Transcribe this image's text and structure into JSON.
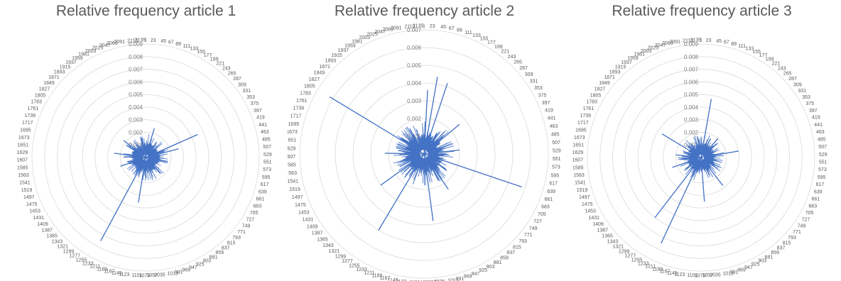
{
  "chart_data": [
    {
      "type": "radar",
      "title": "Relative frequency article 1",
      "rlim": [
        0,
        0.009
      ],
      "ring_ticks": [
        0,
        0.001,
        0.002,
        0.003,
        0.004,
        0.005,
        0.006,
        0.007,
        0.008,
        0.009
      ],
      "ring_labels": [
        "0",
        "0.001",
        "0.002",
        "0.003",
        "0.004",
        "0.005",
        "0.006",
        "0.007",
        "0.008",
        "0.009"
      ],
      "category_count": 2150,
      "category_labels_shown": [
        "1",
        "23",
        "45",
        "67",
        "89",
        "111",
        "133",
        "155",
        "177",
        "199",
        "221",
        "243",
        "265",
        "287",
        "309",
        "331",
        "353",
        "375",
        "397",
        "419",
        "441",
        "463",
        "485",
        "507",
        "529",
        "551",
        "573",
        "595",
        "617",
        "639",
        "661",
        "683",
        "705",
        "727",
        "749",
        "771",
        "793",
        "815",
        "837",
        "859",
        "881",
        "903",
        "925",
        "947",
        "969",
        "991",
        "1013",
        "1035",
        "1057",
        "1079",
        "1101",
        "1123",
        "1145",
        "1167",
        "1189",
        "1211",
        "1233",
        "1255",
        "1277",
        "1299",
        "1321",
        "1343",
        "1365",
        "1387",
        "1409",
        "1431",
        "1453",
        "1475",
        "1497",
        "1519",
        "1541",
        "1563",
        "1585",
        "1607",
        "1629",
        "1651",
        "1673",
        "1695",
        "1717",
        "1739",
        "1761",
        "1783",
        "1805",
        "1827",
        "1849",
        "1871",
        "1893",
        "1915",
        "1937",
        "1959",
        "1981",
        "2003",
        "2025",
        "2047",
        "2069",
        "2091",
        "2113",
        "2135"
      ],
      "series_color": "#4472c4",
      "peaks": [
        {
          "category": 396,
          "value": 0.0045
        },
        {
          "category": 450,
          "value": 0.0027
        },
        {
          "category": 1245,
          "value": 0.0075
        },
        {
          "category": 1130,
          "value": 0.0036
        },
        {
          "category": 100,
          "value": 0.0024
        },
        {
          "category": 1840,
          "value": 0.0022
        },
        {
          "category": 1500,
          "value": 0.0021
        },
        {
          "category": 1660,
          "value": 0.0025
        },
        {
          "category": 600,
          "value": 0.0018
        },
        {
          "category": 820,
          "value": 0.0017
        },
        {
          "category": 2080,
          "value": 0.0016
        }
      ]
    },
    {
      "type": "radar",
      "title": "Relative frequency article 2",
      "rlim": [
        0,
        0.007
      ],
      "ring_ticks": [
        0,
        0.001,
        0.002,
        0.003,
        0.004,
        0.005,
        0.006,
        0.007
      ],
      "ring_labels": [
        "0",
        "0.001",
        "0.002",
        "0.003",
        "0.004",
        "0.005",
        "0.006",
        "0.007"
      ],
      "category_count": 2150,
      "category_labels_shown": [
        "1",
        "23",
        "45",
        "67",
        "89",
        "111",
        "133",
        "155",
        "177",
        "199",
        "221",
        "243",
        "265",
        "287",
        "309",
        "331",
        "353",
        "375",
        "397",
        "419",
        "441",
        "463",
        "485",
        "507",
        "529",
        "551",
        "573",
        "595",
        "617",
        "639",
        "661",
        "683",
        "705",
        "727",
        "749",
        "771",
        "793",
        "815",
        "837",
        "859",
        "881",
        "903",
        "925",
        "947",
        "969",
        "991",
        "1013",
        "1035",
        "1057",
        "1079",
        "1101",
        "1123",
        "1145",
        "1167",
        "1189",
        "1211",
        "1233",
        "1255",
        "1277",
        "1299",
        "1321",
        "1343",
        "1365",
        "1387",
        "1409",
        "1431",
        "1453",
        "1475",
        "1497",
        "1519",
        "1541",
        "1563",
        "1585",
        "1607",
        "1629",
        "1651",
        "1673",
        "1695",
        "1717",
        "1739",
        "1761",
        "1783",
        "1805",
        "1827",
        "1849",
        "1871",
        "1893",
        "1915",
        "1937",
        "1959",
        "1981",
        "2003",
        "2025",
        "2047",
        "2069",
        "2091",
        "2113",
        "2135"
      ],
      "series_color": "#4472c4",
      "peaks": [
        {
          "category": 1800,
          "value": 0.0062
        },
        {
          "category": 650,
          "value": 0.0058
        },
        {
          "category": 1260,
          "value": 0.005
        },
        {
          "category": 60,
          "value": 0.0044
        },
        {
          "category": 110,
          "value": 0.0042
        },
        {
          "category": 1030,
          "value": 0.0038
        },
        {
          "category": 20,
          "value": 0.0036
        },
        {
          "category": 1400,
          "value": 0.003
        },
        {
          "category": 300,
          "value": 0.0026
        },
        {
          "category": 870,
          "value": 0.0024
        },
        {
          "category": 1620,
          "value": 0.0022
        },
        {
          "category": 500,
          "value": 0.002
        }
      ]
    },
    {
      "type": "radar",
      "title": "Relative frequency article 3",
      "rlim": [
        0,
        0.009
      ],
      "ring_ticks": [
        0,
        0.001,
        0.002,
        0.003,
        0.004,
        0.005,
        0.006,
        0.007,
        0.008,
        0.009
      ],
      "ring_labels": [
        "0",
        "0.001",
        "0.002",
        "0.003",
        "0.004",
        "0.005",
        "0.006",
        "0.007",
        "0.008",
        "0.009"
      ],
      "category_count": 2150,
      "category_labels_shown": [
        "1",
        "23",
        "45",
        "67",
        "89",
        "111",
        "133",
        "155",
        "177",
        "199",
        "221",
        "243",
        "265",
        "287",
        "309",
        "331",
        "353",
        "375",
        "397",
        "419",
        "441",
        "463",
        "485",
        "507",
        "529",
        "551",
        "573",
        "595",
        "617",
        "639",
        "661",
        "683",
        "705",
        "727",
        "749",
        "771",
        "793",
        "815",
        "837",
        "859",
        "881",
        "903",
        "925",
        "947",
        "969",
        "991",
        "1013",
        "1035",
        "1057",
        "1079",
        "1101",
        "1123",
        "1145",
        "1167",
        "1189",
        "1211",
        "1233",
        "1255",
        "1277",
        "1299",
        "1321",
        "1343",
        "1365",
        "1387",
        "1409",
        "1431",
        "1453",
        "1475",
        "1497",
        "1519",
        "1541",
        "1563",
        "1585",
        "1607",
        "1629",
        "1651",
        "1673",
        "1695",
        "1717",
        "1739",
        "1761",
        "1783",
        "1805",
        "1827",
        "1849",
        "1871",
        "1893",
        "1915",
        "1937",
        "1959",
        "1981",
        "2003",
        "2025",
        "2047",
        "2069",
        "2091",
        "2113",
        "2135"
      ],
      "series_color": "#4472c4",
      "peaks": [
        {
          "category": 1225,
          "value": 0.0075
        },
        {
          "category": 1300,
          "value": 0.006
        },
        {
          "category": 60,
          "value": 0.0047
        },
        {
          "category": 1800,
          "value": 0.0036
        },
        {
          "category": 480,
          "value": 0.003
        },
        {
          "category": 1050,
          "value": 0.0035
        },
        {
          "category": 850,
          "value": 0.0028
        },
        {
          "category": 1500,
          "value": 0.0024
        },
        {
          "category": 250,
          "value": 0.002
        },
        {
          "category": 1650,
          "value": 0.002
        }
      ]
    }
  ]
}
